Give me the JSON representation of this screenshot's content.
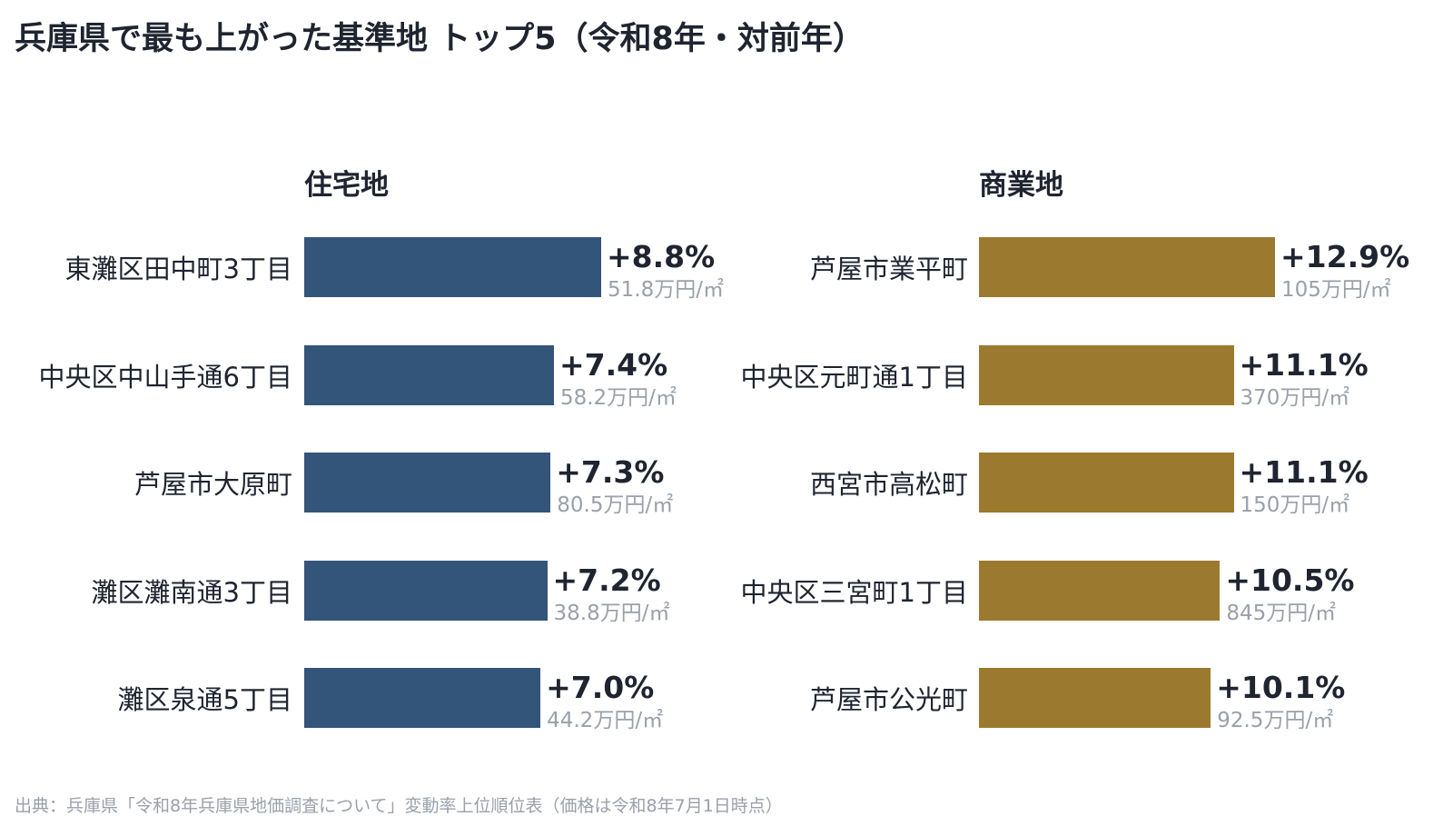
{
  "title": "兵庫県で最も上がった基準地 トップ5（令和8年・対前年）",
  "source": "出典：兵庫県「令和8年兵庫県地価調査について」変動率上位順位表（価格は令和8年7月1日時点）",
  "chart_data": [
    {
      "type": "bar",
      "orientation": "horizontal",
      "title": "住宅地",
      "color": "#34557a",
      "categories": [
        "東灘区田中町3丁目",
        "中央区中山手通6丁目",
        "芦屋市大原町",
        "灘区灘南通3丁目",
        "灘区泉通5丁目"
      ],
      "values": [
        8.8,
        7.4,
        7.3,
        7.2,
        7.0
      ],
      "value_labels": [
        "+8.8%",
        "+7.4%",
        "+7.3%",
        "+7.2%",
        "+7.0%"
      ],
      "price_labels": [
        "51.8万円/㎡",
        "58.2万円/㎡",
        "80.5万円/㎡",
        "38.8万円/㎡",
        "44.2万円/㎡"
      ],
      "xlim": [
        0,
        12.9
      ]
    },
    {
      "type": "bar",
      "orientation": "horizontal",
      "title": "商業地",
      "color": "#9b7a2f",
      "categories": [
        "芦屋市業平町",
        "中央区元町通1丁目",
        "西宮市高松町",
        "中央区三宮町1丁目",
        "芦屋市公光町"
      ],
      "values": [
        12.9,
        11.1,
        11.1,
        10.5,
        10.1
      ],
      "value_labels": [
        "+12.9%",
        "+11.1%",
        "+11.1%",
        "+10.5%",
        "+10.1%"
      ],
      "price_labels": [
        "105万円/㎡",
        "370万円/㎡",
        "150万円/㎡",
        "845万円/㎡",
        "92.5万円/㎡"
      ],
      "xlim": [
        0,
        16
      ]
    }
  ]
}
